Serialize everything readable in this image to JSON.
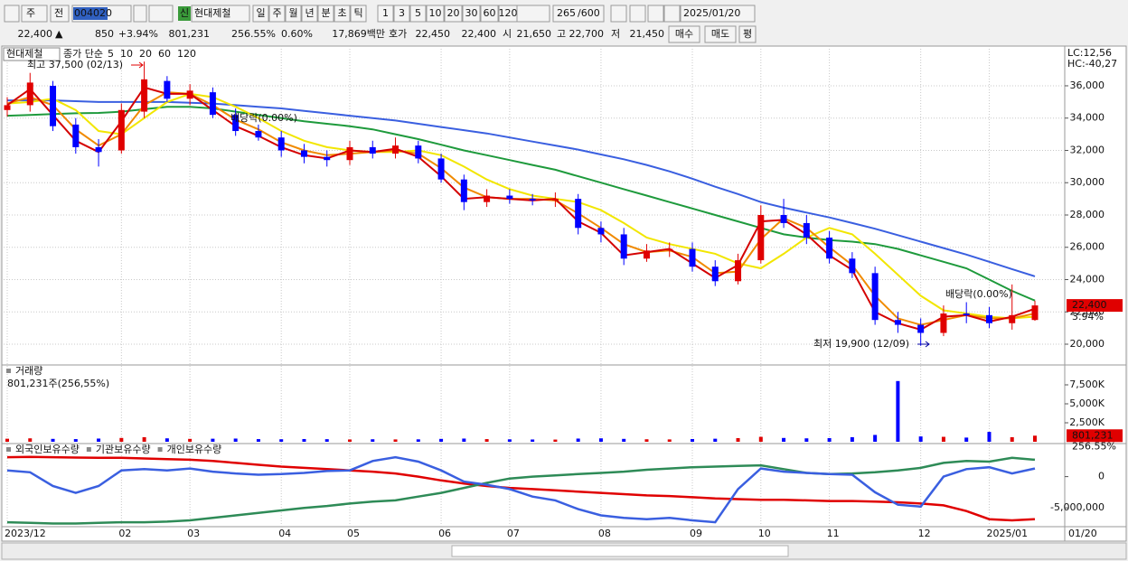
{
  "toolbar": {
    "market": "주",
    "compare": "전",
    "code": "004020",
    "badge": "신",
    "name": "현대제철",
    "periods": [
      "일",
      "주",
      "월",
      "년",
      "분",
      "초",
      "틱"
    ],
    "intervals": [
      "1",
      "3",
      "5",
      "10",
      "20",
      "30",
      "60",
      "120"
    ],
    "count": "265",
    "max": "/600",
    "date": "2025/01/20"
  },
  "quote_bar": {
    "price": "22,400",
    "arrow": "▲",
    "change": "850",
    "rate": "+3.94%",
    "volume": "801,231",
    "volume_rate": "256.55%",
    "turnover": "0.60%",
    "amount": "17,869백만",
    "ask_label": "호가",
    "ask": "22,450",
    "bid": "22,400",
    "open_label": "시",
    "open": "21,650",
    "high_label": "고",
    "high": "22,700",
    "low_label": "저",
    "low": "21,450",
    "buy": "매수",
    "sell": "매도",
    "avg": "평"
  },
  "end_date": "01/20",
  "chart_data": [
    {
      "type": "candlestick",
      "title": "현대제철",
      "legend_title": "종가 단순",
      "corner_labels": [
        "LC:12,56",
        "HC:-40,27"
      ],
      "annotations": [
        "최고 37,500 (02/13)",
        "배당락(0.00%)",
        "배당락(0.00%)",
        "최저 19,900 (12/09)"
      ],
      "last_price_label": "22,400",
      "last_change_label": "3.94%",
      "x": [
        "2023/12",
        null,
        null,
        null,
        null,
        "02",
        null,
        null,
        "03",
        null,
        null,
        null,
        "04",
        null,
        null,
        "05",
        null,
        null,
        null,
        "06",
        null,
        null,
        "07",
        null,
        null,
        null,
        "08",
        null,
        null,
        null,
        "09",
        null,
        null,
        "10",
        null,
        null,
        "11",
        null,
        null,
        null,
        "12",
        null,
        null,
        "2025/01",
        null,
        null
      ],
      "open": [
        34500,
        34800,
        36000,
        33600,
        32200,
        32000,
        34400,
        36300,
        35200,
        35600,
        34200,
        33200,
        32800,
        32000,
        31600,
        31400,
        32200,
        31800,
        32300,
        31500,
        30200,
        28800,
        29200,
        29000,
        28900,
        29000,
        27200,
        26800,
        25300,
        25800,
        25900,
        24800,
        23900,
        25200,
        28000,
        27500,
        26600,
        25300,
        24400,
        21500,
        21200,
        20700,
        21900,
        21800,
        21300,
        21500
      ],
      "high": [
        35300,
        36800,
        36300,
        34000,
        32700,
        34900,
        37500,
        36600,
        36100,
        35900,
        34600,
        33600,
        33200,
        32400,
        32000,
        32600,
        32600,
        32800,
        32600,
        31800,
        30500,
        29600,
        29600,
        29300,
        29400,
        29300,
        27600,
        27200,
        26200,
        26300,
        26300,
        25200,
        25600,
        28600,
        29000,
        28000,
        27000,
        25700,
        24800,
        22000,
        21600,
        22400,
        22600,
        22300,
        23700,
        22700
      ],
      "low": [
        34100,
        34400,
        33200,
        31800,
        31000,
        31800,
        34000,
        35000,
        34800,
        34000,
        32900,
        32600,
        31600,
        31200,
        31000,
        31100,
        31500,
        31500,
        31200,
        30000,
        28300,
        28500,
        28700,
        28600,
        28500,
        26800,
        26300,
        24900,
        25100,
        25400,
        24500,
        23600,
        23700,
        25000,
        27200,
        26200,
        25000,
        24100,
        21200,
        20700,
        19900,
        20500,
        21300,
        21000,
        20900,
        21450
      ],
      "close": [
        34800,
        36200,
        33500,
        32200,
        31900,
        34500,
        36400,
        35200,
        35700,
        34200,
        33200,
        32800,
        32000,
        31600,
        31400,
        32200,
        31800,
        32300,
        31500,
        30200,
        28800,
        29200,
        29000,
        28900,
        29000,
        27200,
        26800,
        25300,
        25800,
        25900,
        24800,
        23900,
        25200,
        28000,
        27500,
        26600,
        25300,
        24400,
        21500,
        21200,
        20700,
        21900,
        21800,
        21300,
        21800,
        22400
      ],
      "up_color": "#e00000",
      "down_color": "#0000ff",
      "series": [
        {
          "name": "5",
          "color": "#d40000",
          "values": [
            34800,
            35800,
            34200,
            32600,
            31900,
            33800,
            35900,
            35500,
            35500,
            34500,
            33500,
            32900,
            32200,
            31700,
            31500,
            32000,
            31900,
            32100,
            31600,
            30400,
            29000,
            29100,
            29000,
            28900,
            29000,
            27600,
            26900,
            25500,
            25700,
            25900,
            25000,
            24100,
            24900,
            27600,
            27700,
            26800,
            25500,
            24600,
            22000,
            21300,
            20900,
            21700,
            21800,
            21400,
            21700,
            22200
          ]
        },
        {
          "name": "10",
          "color": "#f08a00",
          "values": [
            34900,
            35300,
            34800,
            33300,
            32300,
            33000,
            34800,
            35600,
            35500,
            34800,
            33900,
            33300,
            32500,
            32000,
            31700,
            31800,
            31900,
            32000,
            31800,
            30900,
            29700,
            29100,
            29000,
            29000,
            28900,
            28100,
            27200,
            26200,
            25700,
            25800,
            25400,
            24400,
            24500,
            26500,
            27800,
            27200,
            26000,
            24900,
            23000,
            21600,
            21200,
            21500,
            21800,
            21600,
            21600,
            21900
          ]
        },
        {
          "name": "20",
          "color": "#f2e600",
          "values": [
            34900,
            35000,
            35200,
            34500,
            33200,
            33000,
            34000,
            35000,
            35500,
            35300,
            34700,
            34000,
            33200,
            32600,
            32200,
            32000,
            31900,
            31900,
            32000,
            31700,
            31000,
            30200,
            29600,
            29200,
            29000,
            28800,
            28300,
            27500,
            26600,
            26200,
            25900,
            25600,
            25000,
            24700,
            25600,
            26600,
            27200,
            26800,
            25600,
            24300,
            23000,
            22100,
            21900,
            21700,
            21600,
            21700
          ]
        },
        {
          "name": "60",
          "color": "#1e9a3c",
          "values": [
            34150,
            34200,
            34250,
            34300,
            34320,
            34400,
            34550,
            34700,
            34700,
            34600,
            34400,
            34200,
            34000,
            33800,
            33650,
            33500,
            33300,
            33000,
            32700,
            32350,
            32000,
            31700,
            31400,
            31100,
            30800,
            30400,
            30000,
            29600,
            29200,
            28800,
            28400,
            28000,
            27600,
            27200,
            26800,
            26600,
            26450,
            26350,
            26200,
            25900,
            25500,
            25100,
            24700,
            24000,
            23300,
            22700
          ]
        },
        {
          "name": "120",
          "color": "#3a5fe0",
          "values": [
            35100,
            35100,
            35100,
            35050,
            35000,
            35000,
            35000,
            35000,
            34950,
            34900,
            34800,
            34700,
            34600,
            34450,
            34300,
            34150,
            34000,
            33850,
            33650,
            33450,
            33250,
            33050,
            32800,
            32550,
            32300,
            32050,
            31750,
            31450,
            31100,
            30700,
            30250,
            29750,
            29300,
            28800,
            28450,
            28150,
            27850,
            27500,
            27150,
            26750,
            26350,
            25950,
            25550,
            25100,
            24650,
            24200
          ]
        }
      ],
      "ylim": [
        18770,
        38460
      ],
      "yticks": [
        {
          "value": 20000,
          "label": "20,000"
        },
        {
          "value": 22000,
          "label": "22,000"
        },
        {
          "value": 24000,
          "label": "24,000"
        },
        {
          "value": 26000,
          "label": "26,000"
        },
        {
          "value": 28000,
          "label": "28,000"
        },
        {
          "value": 30000,
          "label": "30,000"
        },
        {
          "value": 32000,
          "label": "32,000"
        },
        {
          "value": 34000,
          "label": "34,000"
        },
        {
          "value": 36000,
          "label": "36,000"
        }
      ],
      "grid": true
    },
    {
      "type": "bar",
      "title": "거래량",
      "subtitle": "801,231주(256,55%)",
      "last_value_label": "801,231",
      "last_rate_label": "256.55%",
      "values": [
        400000,
        450000,
        380000,
        350000,
        420000,
        500000,
        600000,
        450000,
        380000,
        400000,
        420000,
        350000,
        330000,
        360000,
        340000,
        300000,
        330000,
        310000,
        320000,
        380000,
        420000,
        350000,
        320000,
        300000,
        290000,
        420000,
        450000,
        380000,
        330000,
        310000,
        360000,
        400000,
        480000,
        650000,
        500000,
        450000,
        480000,
        600000,
        900000,
        8000000,
        700000,
        650000,
        550000,
        1300000,
        600000,
        801231
      ],
      "ylim": [
        0,
        10000000
      ],
      "yticks": [
        {
          "value": 2500000,
          "label": "2,500K"
        },
        {
          "value": 5000000,
          "label": "5,000K"
        },
        {
          "value": 7500000,
          "label": "7,500K"
        }
      ],
      "grid": true
    },
    {
      "type": "line",
      "series": [
        {
          "name": "외국인보유수량",
          "color": "#e00000",
          "values": [
            3100000,
            3150000,
            3100000,
            3050000,
            3000000,
            3000000,
            2900000,
            2800000,
            2700000,
            2500000,
            2200000,
            1900000,
            1600000,
            1400000,
            1200000,
            1000000,
            800000,
            500000,
            0,
            -600000,
            -1100000,
            -1500000,
            -1800000,
            -2000000,
            -2200000,
            -2400000,
            -2600000,
            -2800000,
            -3000000,
            -3100000,
            -3300000,
            -3500000,
            -3600000,
            -3700000,
            -3700000,
            -3800000,
            -3900000,
            -3900000,
            -4000000,
            -4100000,
            -4300000,
            -4600000,
            -5500000,
            -6800000,
            -7000000,
            -6800000
          ]
        },
        {
          "name": "기관보유수량",
          "color": "#2e8b57",
          "values": [
            -7300000,
            -7400000,
            -7500000,
            -7500000,
            -7400000,
            -7300000,
            -7300000,
            -7200000,
            -7000000,
            -6600000,
            -6200000,
            -5800000,
            -5400000,
            -5000000,
            -4700000,
            -4300000,
            -4000000,
            -3800000,
            -3200000,
            -2600000,
            -1800000,
            -1000000,
            -300000,
            0,
            200000,
            400000,
            600000,
            800000,
            1100000,
            1300000,
            1500000,
            1600000,
            1700000,
            1800000,
            1200000,
            600000,
            400000,
            500000,
            700000,
            1000000,
            1400000,
            2200000,
            2500000,
            2400000,
            3000000,
            2700000
          ]
        },
        {
          "name": "개인보유수량",
          "color": "#3a5fe0",
          "values": [
            1000000,
            700000,
            -1500000,
            -2600000,
            -1500000,
            1000000,
            1200000,
            1000000,
            1300000,
            800000,
            500000,
            300000,
            400000,
            600000,
            900000,
            1000000,
            2500000,
            3100000,
            2400000,
            1000000,
            -800000,
            -1300000,
            -2000000,
            -3200000,
            -3800000,
            -5200000,
            -6200000,
            -6600000,
            -6800000,
            -6600000,
            -7000000,
            -7300000,
            -2000000,
            1300000,
            800000,
            600000,
            400000,
            300000,
            -2500000,
            -4500000,
            -4800000,
            0,
            1200000,
            1500000,
            500000,
            1300000
          ]
        }
      ],
      "ylim": [
        -7860000,
        5000000
      ],
      "yticks": [
        {
          "value": -5000000,
          "label": "-5,000,000"
        },
        0
      ],
      "grid": true
    }
  ]
}
